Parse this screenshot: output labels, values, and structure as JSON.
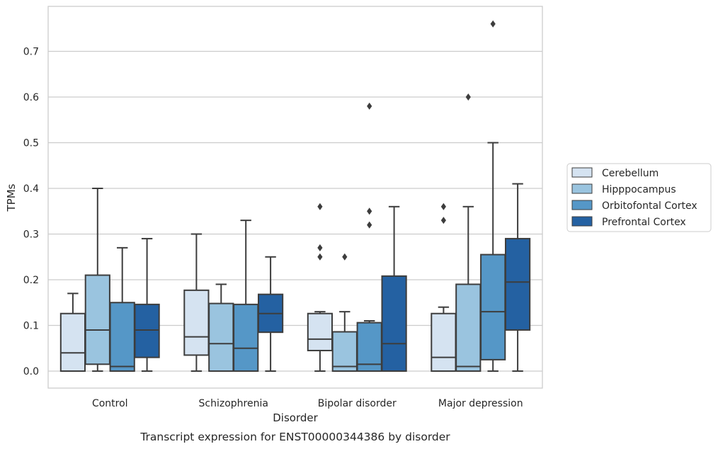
{
  "chart_data": {
    "type": "box",
    "title": "",
    "caption": "Transcript expression for ENST00000344386 by disorder",
    "xlabel": "Disorder",
    "ylabel": "TPMs",
    "ylim": [
      -0.037,
      0.8
    ],
    "yticks": [
      0.0,
      0.1,
      0.2,
      0.3,
      0.4,
      0.5,
      0.6,
      0.7
    ],
    "ytick_labels": [
      "0.0",
      "0.1",
      "0.2",
      "0.3",
      "0.4",
      "0.5",
      "0.6",
      "0.7"
    ],
    "grid": "horizontal",
    "legend_position": "right",
    "categories": [
      "Control",
      "Schizophrenia",
      "Bipolar disorder",
      "Major depression"
    ],
    "series": [
      {
        "name": "Cerebellum",
        "color": "#d5e3f1",
        "boxes": [
          {
            "min": 0.0,
            "q1": 0.0,
            "median": 0.04,
            "q3": 0.126,
            "max": 0.17,
            "outliers": []
          },
          {
            "min": 0.0,
            "q1": 0.035,
            "median": 0.075,
            "q3": 0.177,
            "max": 0.3,
            "outliers": []
          },
          {
            "min": 0.0,
            "q1": 0.045,
            "median": 0.07,
            "q3": 0.126,
            "max": 0.13,
            "outliers": [
              0.36,
              0.27,
              0.25
            ]
          },
          {
            "min": 0.0,
            "q1": 0.0,
            "median": 0.03,
            "q3": 0.126,
            "max": 0.14,
            "outliers": [
              0.36,
              0.33
            ]
          }
        ]
      },
      {
        "name": "Hipppocampus",
        "color": "#9ac4df",
        "boxes": [
          {
            "min": 0.0,
            "q1": 0.015,
            "median": 0.09,
            "q3": 0.21,
            "max": 0.4,
            "outliers": []
          },
          {
            "min": 0.0,
            "q1": 0.0,
            "median": 0.06,
            "q3": 0.148,
            "max": 0.19,
            "outliers": []
          },
          {
            "min": 0.0,
            "q1": 0.0,
            "median": 0.01,
            "q3": 0.086,
            "max": 0.13,
            "outliers": [
              0.25
            ]
          },
          {
            "min": 0.0,
            "q1": 0.0,
            "median": 0.01,
            "q3": 0.19,
            "max": 0.36,
            "outliers": [
              0.6
            ]
          }
        ]
      },
      {
        "name": "Orbitofontal Cortex",
        "color": "#5597c7",
        "boxes": [
          {
            "min": 0.0,
            "q1": 0.0,
            "median": 0.01,
            "q3": 0.15,
            "max": 0.27,
            "outliers": []
          },
          {
            "min": 0.0,
            "q1": 0.0,
            "median": 0.05,
            "q3": 0.146,
            "max": 0.33,
            "outliers": []
          },
          {
            "min": 0.0,
            "q1": 0.0,
            "median": 0.015,
            "q3": 0.106,
            "max": 0.11,
            "outliers": [
              0.58,
              0.35,
              0.32
            ]
          },
          {
            "min": 0.0,
            "q1": 0.025,
            "median": 0.13,
            "q3": 0.255,
            "max": 0.5,
            "outliers": [
              0.76
            ]
          }
        ]
      },
      {
        "name": "Prefrontal Cortex",
        "color": "#2461a2",
        "boxes": [
          {
            "min": 0.0,
            "q1": 0.03,
            "median": 0.09,
            "q3": 0.146,
            "max": 0.29,
            "outliers": []
          },
          {
            "min": 0.0,
            "q1": 0.085,
            "median": 0.126,
            "q3": 0.168,
            "max": 0.25,
            "outliers": []
          },
          {
            "min": 0.0,
            "q1": 0.0,
            "median": 0.06,
            "q3": 0.208,
            "max": 0.36,
            "outliers": []
          },
          {
            "min": 0.0,
            "q1": 0.09,
            "median": 0.195,
            "q3": 0.29,
            "max": 0.41,
            "outliers": []
          }
        ]
      }
    ]
  }
}
